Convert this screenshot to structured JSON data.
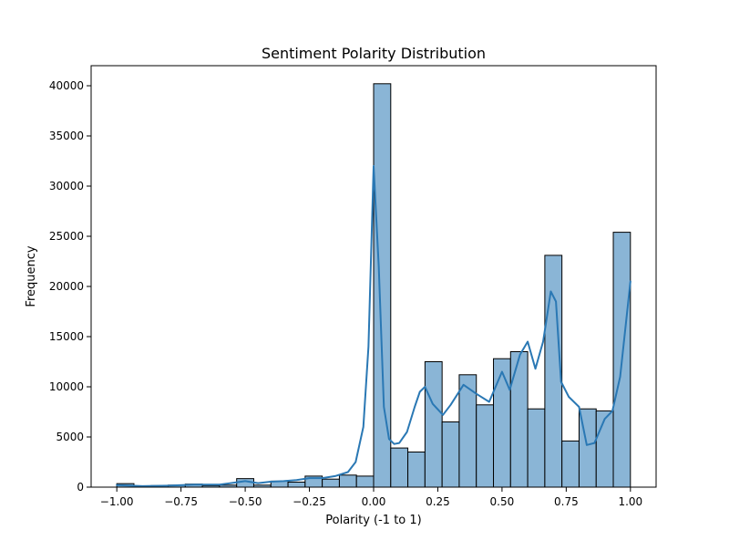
{
  "chart_data": {
    "type": "bar",
    "title": "Sentiment Polarity Distribution",
    "xlabel": "Polarity (-1 to 1)",
    "ylabel": "Frequency",
    "xlim": [
      -1.1,
      1.1
    ],
    "ylim": [
      0,
      42000
    ],
    "xticks": [
      -1.0,
      -0.75,
      -0.5,
      -0.25,
      0.0,
      0.25,
      0.5,
      0.75,
      1.0
    ],
    "xtick_labels": [
      "−1.00",
      "−0.75",
      "−0.50",
      "−0.25",
      "0.00",
      "0.25",
      "0.50",
      "0.75",
      "1.00"
    ],
    "yticks": [
      0,
      5000,
      10000,
      15000,
      20000,
      25000,
      30000,
      35000,
      40000
    ],
    "ytick_labels": [
      "0",
      "5000",
      "10000",
      "15000",
      "20000",
      "25000",
      "30000",
      "35000",
      "40000"
    ],
    "grid": false,
    "bins": {
      "edges": [
        -1.0,
        -0.9333,
        -0.8667,
        -0.8,
        -0.7333,
        -0.6667,
        -0.6,
        -0.5333,
        -0.4667,
        -0.4,
        -0.3333,
        -0.2667,
        -0.2,
        -0.1333,
        -0.0667,
        0.0,
        0.0667,
        0.1333,
        0.2,
        0.2667,
        0.3333,
        0.4,
        0.4667,
        0.5333,
        0.6,
        0.6667,
        0.7333,
        0.8,
        0.8667,
        0.9333,
        1.0
      ],
      "counts": [
        350,
        100,
        150,
        200,
        300,
        150,
        200,
        850,
        200,
        600,
        500,
        1100,
        800,
        1200,
        1100,
        40200,
        3900,
        3500,
        12500,
        6500,
        11200,
        8200,
        12800,
        13500,
        7800,
        23100,
        4600,
        7800,
        7600,
        25400
      ]
    },
    "kde": {
      "x": [
        -1.0,
        -0.9,
        -0.8,
        -0.7,
        -0.6,
        -0.5,
        -0.45,
        -0.4,
        -0.35,
        -0.3,
        -0.25,
        -0.2,
        -0.15,
        -0.1,
        -0.07,
        -0.04,
        -0.02,
        0.0,
        0.02,
        0.04,
        0.06,
        0.08,
        0.1,
        0.13,
        0.16,
        0.18,
        0.2,
        0.23,
        0.27,
        0.3,
        0.35,
        0.4,
        0.45,
        0.5,
        0.53,
        0.57,
        0.6,
        0.63,
        0.66,
        0.69,
        0.71,
        0.73,
        0.76,
        0.8,
        0.83,
        0.86,
        0.9,
        0.93,
        0.96,
        1.0
      ],
      "y": [
        200,
        100,
        150,
        250,
        250,
        600,
        400,
        550,
        600,
        700,
        900,
        900,
        1100,
        1500,
        2500,
        6000,
        14000,
        32000,
        22000,
        8000,
        4800,
        4300,
        4400,
        5500,
        8000,
        9500,
        10000,
        8300,
        7200,
        8200,
        10200,
        9300,
        8500,
        11500,
        9700,
        13200,
        14500,
        11800,
        14500,
        19500,
        18500,
        10500,
        9000,
        8000,
        4200,
        4400,
        6800,
        7600,
        11000,
        20500
      ]
    },
    "colors": {
      "bar_fill": "#8ab5d6",
      "bar_stroke": "#000000",
      "kde": "#2a78b4"
    }
  }
}
